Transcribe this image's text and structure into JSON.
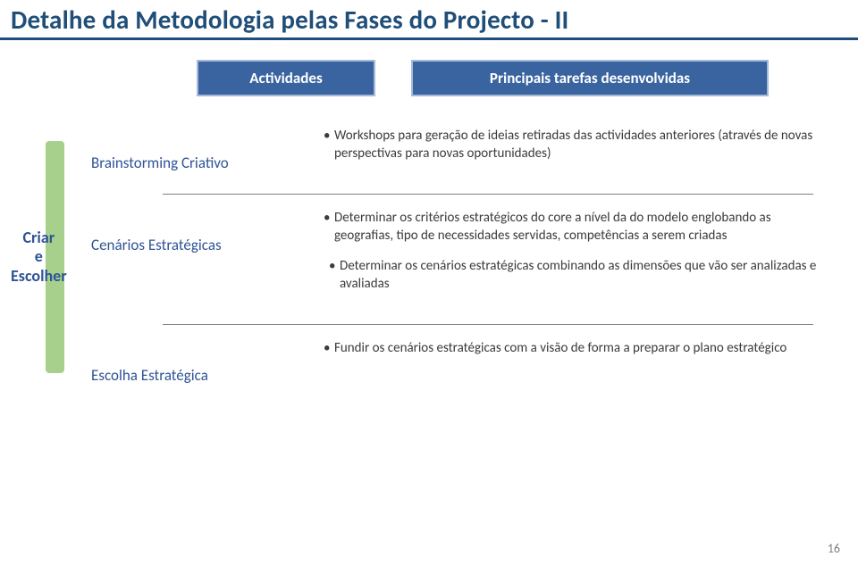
{
  "colors": {
    "title_text": "#1f4e79",
    "title_underline": "#1f4e79",
    "header_bg": "#3a64a0",
    "header_border": "#a6b9d8",
    "side_bg": "#a8d08d",
    "side_text": "#2f5496",
    "divider": "#7f7f7f",
    "body_text": "#3b3b3b",
    "act_text": "#2f5496",
    "pagenum": "#7f7f7f"
  },
  "fontsize": {
    "title": 29,
    "header": 17,
    "side": 18,
    "activity": 17,
    "desc": 15,
    "pagenum": 14
  },
  "title": "Detalhe da Metodologia pelas Fases do Projecto - II",
  "headers": {
    "left": "Actividades",
    "right": "Principais tarefas desenvolvidas"
  },
  "side_label": "Criar\ne\nEscolher",
  "rows": [
    {
      "activity": "Brainstorming Criativo",
      "bullets": [
        "Workshops para geração de ideias retiradas das actividades anteriores (através de novas perspectivas para novas oportunidades)"
      ]
    },
    {
      "activity": "Cenários Estratégicas",
      "bullets": [
        "Determinar os critérios estratégicos do core a nível da do modelo  englobando as geografias, tipo de necessidades servidas, competências a serem criadas",
        " Determinar os cenários estratégicas combinando as dimensões que vão ser analizadas e avaliadas"
      ],
      "indent_second": true
    },
    {
      "activity": "Escolha Estratégica",
      "bullets": [
        "Fundir os cenários estratégicas com a visão de forma a preparar o plano estratégico"
      ]
    }
  ],
  "page_number": "16"
}
